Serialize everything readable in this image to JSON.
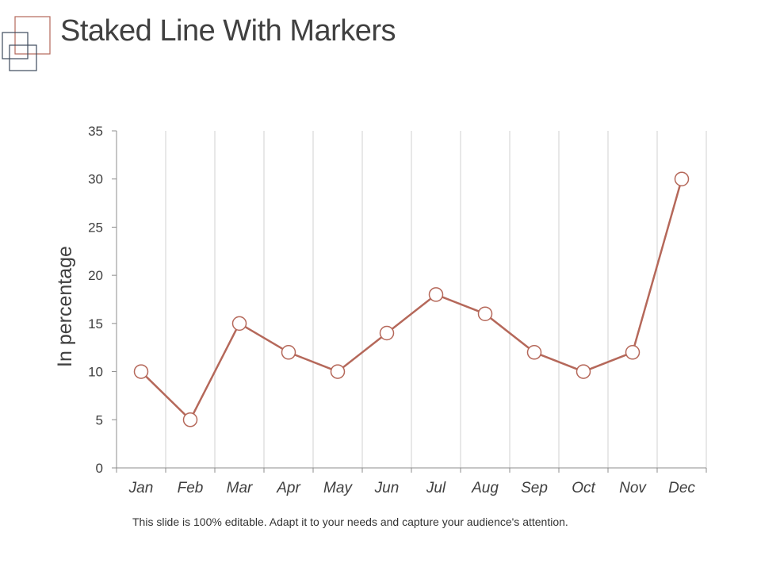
{
  "slide": {
    "title": "Staked Line With Markers",
    "caption": "This slide is 100% editable. Adapt it to your needs and capture your audience's attention."
  },
  "colors": {
    "line": "#b5685a",
    "marker_fill": "#ffffff",
    "grid": "#d0d0d0",
    "axis": "#8c8c8c",
    "text": "#404040",
    "logo_accent": "#b5685a",
    "logo_dark": "#3d4a5c"
  },
  "chart_data": {
    "type": "line",
    "title": "",
    "xlabel": "",
    "ylabel": "In percentage",
    "categories": [
      "Jan",
      "Feb",
      "Mar",
      "Apr",
      "May",
      "Jun",
      "Jul",
      "Aug",
      "Sep",
      "Oct",
      "Nov",
      "Dec"
    ],
    "series": [
      {
        "values": [
          10,
          5,
          15,
          12,
          10,
          14,
          18,
          16,
          12,
          10,
          12,
          30
        ]
      }
    ],
    "ylim": [
      0,
      35
    ],
    "yticks": [
      0,
      5,
      10,
      15,
      20,
      25,
      30,
      35
    ],
    "grid": "vertical",
    "markers": "circle",
    "legend": "none"
  }
}
